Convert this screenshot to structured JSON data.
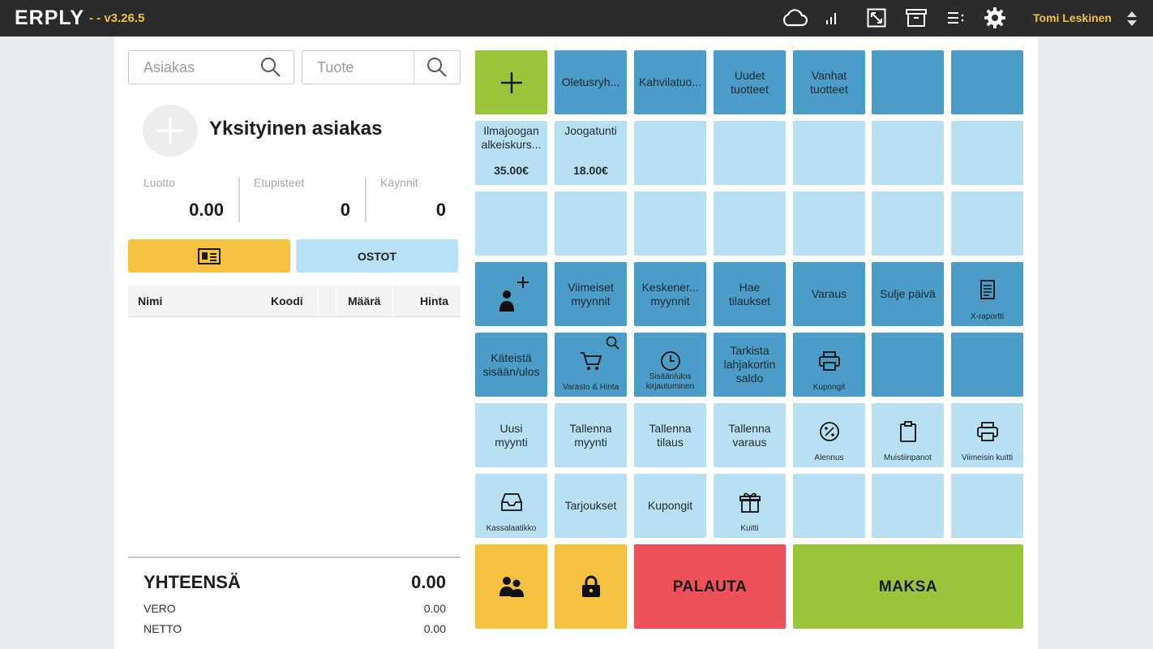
{
  "header": {
    "logo": "ERPLY",
    "version": "- - v3.26.5",
    "user": "Tomi Leskinen",
    "icons": [
      "cloud-icon",
      "signal-icon",
      "resize-icon",
      "archive-icon",
      "list-icon",
      "gear-icon",
      "sort-arrows-icon"
    ]
  },
  "search": {
    "customer_placeholder": "Asiakas",
    "product_placeholder": "Tuote"
  },
  "customer": {
    "name": "Yksityinen asiakas",
    "stats": [
      {
        "label": "Luotto",
        "value": "0.00"
      },
      {
        "label": "Etupisteet",
        "value": "0"
      },
      {
        "label": "Käynnit",
        "value": "0"
      }
    ],
    "purchases_label": "OSTOT"
  },
  "table": {
    "columns": [
      "Nimi",
      "Koodi",
      "Määrä",
      "Hinta"
    ]
  },
  "totals": {
    "total_label": "YHTEENSÄ",
    "total_value": "0.00",
    "tax_label": "VERO",
    "tax_value": "0.00",
    "net_label": "NETTO",
    "net_value": "0.00"
  },
  "tiles": {
    "row1": [
      "Oletusryh...",
      "Kahvilatuo...",
      "Uudet tuotteet",
      "Vanhat tuotteet"
    ],
    "products": [
      {
        "name": "Ilmajoogan alkeiskurs...",
        "price": "35.00€"
      },
      {
        "name": "Joogatunti",
        "price": "18.00€"
      }
    ],
    "row4": [
      "Viimeiset myynnit",
      "Keskener... myynnit",
      "Hae tilaukset",
      "Varaus",
      "Sulje päivä",
      "X-raportti"
    ],
    "row5": [
      "Käteistä sisään/ulos",
      "Varasto & Hinta",
      "Sisään/ulos kirjautuminen",
      "Tarkista lahjakortin saldo",
      "Kupongit"
    ],
    "row6": [
      "Uusi myynti",
      "Tallenna myynti",
      "Tallenna tilaus",
      "Tallenna varaus",
      "Alennus",
      "Muistiinpanot",
      "Viimeisin kuitti"
    ],
    "row7": [
      "Kassalaatikko",
      "Tarjoukset",
      "Kupongit",
      "Kuitti"
    ],
    "bottom": {
      "return": "PALAUTA",
      "pay": "MAKSA"
    }
  },
  "colors": {
    "topbar": "#2b2b2b",
    "accent_yellow": "#f4c140",
    "tile_dark": "#4b9cc6",
    "tile_light": "#b9e0f2",
    "green": "#9ac43a",
    "red": "#ec5058"
  }
}
